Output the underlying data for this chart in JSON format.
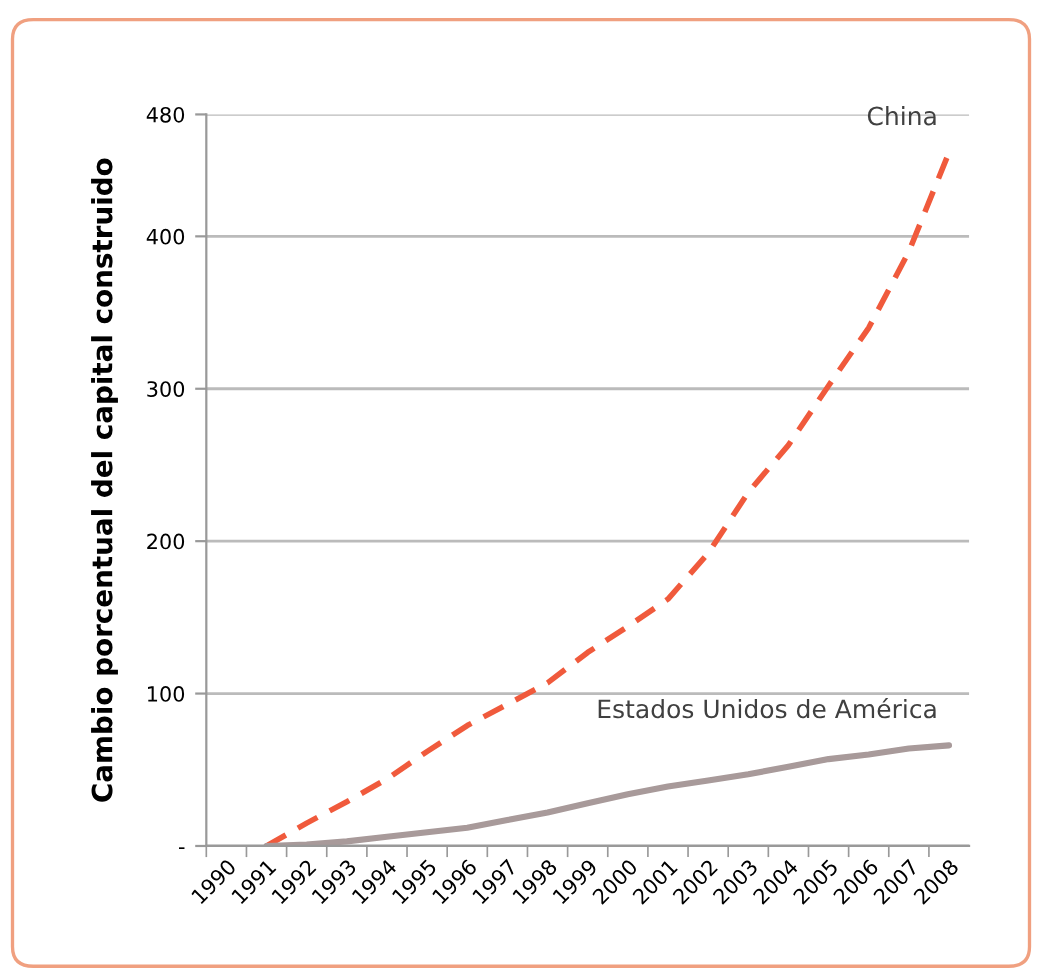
{
  "chart_data": {
    "type": "line",
    "ylabel": "Cambio porcentual del capital construido",
    "categories": [
      "1990",
      "1991",
      "1992",
      "1993",
      "1994",
      "1995",
      "1996",
      "1997",
      "1998",
      "1999",
      "2000",
      "2001",
      "2002",
      "2003",
      "2004",
      "2005",
      "2006",
      "2007",
      "2008"
    ],
    "series": [
      {
        "name": "China",
        "color": "#f05a3c",
        "line_style": "dashed",
        "values": [
          null,
          0,
          15,
          29,
          44,
          62,
          79,
          93,
          107,
          127,
          144,
          162,
          192,
          232,
          263,
          302,
          340,
          390,
          455
        ]
      },
      {
        "name": "Estados Unidos de América",
        "color": "#a89a9a",
        "line_style": "solid",
        "values": [
          null,
          0,
          1,
          3,
          6,
          9,
          12,
          17,
          22,
          28,
          34,
          39,
          43,
          47,
          52,
          57,
          60,
          64,
          66
        ]
      }
    ],
    "ylim": [
      0,
      480
    ],
    "yticks": [
      {
        "value": 0,
        "label": "-"
      },
      100,
      200,
      300,
      400,
      480
    ],
    "grid": "y",
    "marker": "none",
    "legend": false
  }
}
